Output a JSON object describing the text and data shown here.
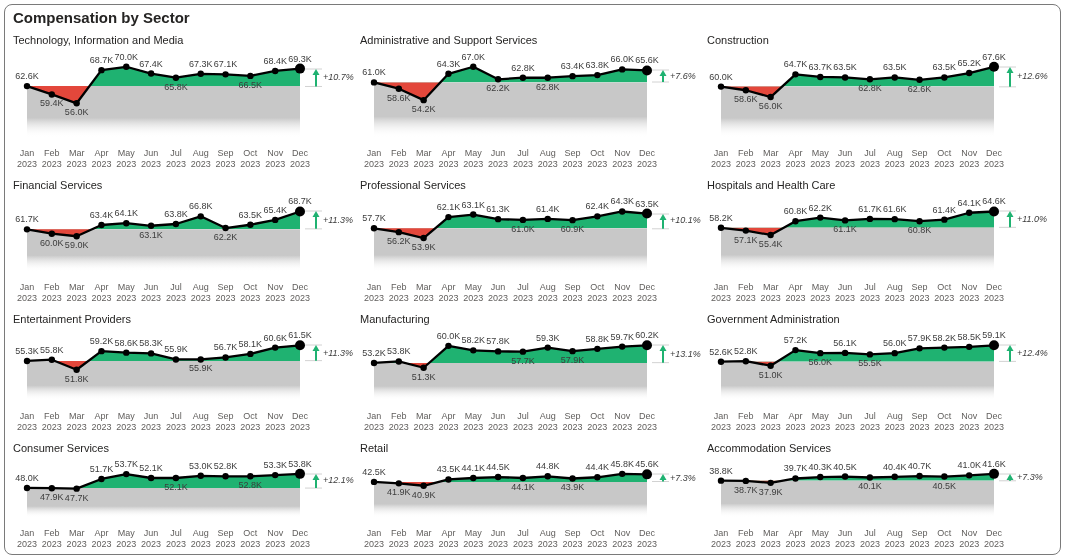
{
  "chart_data": [
    {
      "type": "line",
      "title": "Compensation by Sector",
      "subtitle": "Technology, Information and Media",
      "categories": [
        "Jan 2023",
        "Feb 2023",
        "Mar 2023",
        "Apr 2023",
        "May 2023",
        "Jun 2023",
        "Jul 2023",
        "Aug 2023",
        "Sep 2023",
        "Oct 2023",
        "Nov 2023",
        "Dec 2023"
      ],
      "tick_labels": "x",
      "colors": [
        "#1fb271",
        "#e3473b"
      ],
      "series": [
        {
          "type": "area",
          "color": "#c8c8c8",
          "values": [
            62.6,
            null,
            null,
            62.6,
            62.6,
            62.6,
            62.6,
            62.6,
            62.6,
            62.6,
            62.6,
            62.6
          ]
        },
        {
          "color": "#000000",
          "marker": "circle",
          "values": [
            62.6,
            59.4,
            56.0,
            68.7,
            70.0,
            67.4,
            65.8,
            67.3,
            67.1,
            66.5,
            68.4,
            69.3
          ],
          "value_labels": [
            "62.6K",
            "59.4K",
            "56.0K",
            "68.7K",
            "70.0K",
            "67.4K",
            "65.8K",
            "67.3K",
            "67.1K",
            "66.5K",
            "68.4K",
            "69.3K"
          ]
        }
      ],
      "annotations": [
        "+10.7%"
      ]
    },
    {
      "type": "line",
      "title": "Administrative and Support Services",
      "categories": [
        "Jan 2023",
        "Feb 2023",
        "Mar 2023",
        "Apr 2023",
        "May 2023",
        "Jun 2023",
        "Jul 2023",
        "Aug 2023",
        "Sep 2023",
        "Oct 2023",
        "Nov 2023",
        "Dec 2023"
      ],
      "tick_labels": "x",
      "colors": [
        "#1fb271",
        "#e3473b"
      ],
      "series": [
        {
          "type": "area",
          "color": "#c8c8c8",
          "values": [
            61.0,
            null,
            null,
            61.0,
            61.0,
            61.0,
            61.0,
            61.0,
            61.0,
            61.0,
            61.0,
            61.0
          ]
        },
        {
          "color": "#000000",
          "marker": "circle",
          "values": [
            61.0,
            58.6,
            54.2,
            64.3,
            67.0,
            62.2,
            62.8,
            62.8,
            63.4,
            63.8,
            66.0,
            65.6
          ],
          "value_labels": [
            "61.0K",
            "58.6K",
            "54.2K",
            "64.3K",
            "67.0K",
            "62.2K",
            "62.8K",
            "62.8K",
            "63.4K",
            "63.8K",
            "66.0K",
            "65.6K"
          ]
        }
      ],
      "annotations": [
        "+7.6%"
      ]
    },
    {
      "type": "line",
      "title": "Construction",
      "categories": [
        "Jan 2023",
        "Feb 2023",
        "Mar 2023",
        "Apr 2023",
        "May 2023",
        "Jun 2023",
        "Jul 2023",
        "Aug 2023",
        "Sep 2023",
        "Oct 2023",
        "Nov 2023",
        "Dec 2023"
      ],
      "tick_labels": "x",
      "colors": [
        "#1fb271",
        "#e3473b"
      ],
      "series": [
        {
          "type": "area",
          "color": "#c8c8c8",
          "values": [
            60.0,
            null,
            null,
            60.0,
            60.0,
            60.0,
            60.0,
            60.0,
            60.0,
            60.0,
            60.0,
            60.0
          ]
        },
        {
          "color": "#000000",
          "marker": "circle",
          "values": [
            60.0,
            58.6,
            56.0,
            64.7,
            63.7,
            63.5,
            62.8,
            63.5,
            62.6,
            63.5,
            65.2,
            67.6
          ],
          "value_labels": [
            "60.0K",
            "58.6K",
            "56.0K",
            "64.7K",
            "63.7K",
            "63.5K",
            "62.8K",
            "63.5K",
            "62.6K",
            "63.5K",
            "65.2K",
            "67.6K"
          ]
        }
      ],
      "annotations": [
        "+12.6%"
      ]
    },
    {
      "type": "line",
      "title": "Financial Services",
      "categories": [
        "Jan 2023",
        "Feb 2023",
        "Mar 2023",
        "Apr 2023",
        "May 2023",
        "Jun 2023",
        "Jul 2023",
        "Aug 2023",
        "Sep 2023",
        "Oct 2023",
        "Nov 2023",
        "Dec 2023"
      ],
      "tick_labels": "x",
      "colors": [
        "#1fb271",
        "#e3473b"
      ],
      "series": [
        {
          "type": "area",
          "color": "#c8c8c8",
          "values": [
            61.7,
            null,
            null,
            61.7,
            61.7,
            61.7,
            61.7,
            61.7,
            null,
            61.7,
            61.7,
            61.7
          ]
        },
        {
          "color": "#000000",
          "marker": "circle",
          "values": [
            61.7,
            60.0,
            59.0,
            63.4,
            64.1,
            63.1,
            63.8,
            66.8,
            62.2,
            63.5,
            65.4,
            68.7
          ],
          "value_labels": [
            "61.7K",
            "60.0K",
            "59.0K",
            "63.4K",
            "64.1K",
            "63.1K",
            "63.8K",
            "66.8K",
            "62.2K",
            "63.5K",
            "65.4K",
            "68.7K"
          ]
        }
      ],
      "annotations": [
        "+11.3%"
      ]
    },
    {
      "type": "line",
      "title": "Professional Services",
      "categories": [
        "Jan 2023",
        "Feb 2023",
        "Mar 2023",
        "Apr 2023",
        "May 2023",
        "Jun 2023",
        "Jul 2023",
        "Aug 2023",
        "Sep 2023",
        "Oct 2023",
        "Nov 2023",
        "Dec 2023"
      ],
      "tick_labels": "x",
      "colors": [
        "#1fb271",
        "#e3473b"
      ],
      "series": [
        {
          "type": "area",
          "color": "#c8c8c8",
          "values": [
            57.7,
            null,
            null,
            57.7,
            57.7,
            57.7,
            57.7,
            57.7,
            57.7,
            57.7,
            57.7,
            57.7
          ]
        },
        {
          "color": "#000000",
          "marker": "circle",
          "values": [
            57.7,
            56.2,
            53.9,
            62.1,
            63.1,
            61.3,
            61.0,
            61.4,
            60.9,
            62.4,
            64.3,
            63.5
          ],
          "value_labels": [
            "57.7K",
            "56.2K",
            "53.9K",
            "62.1K",
            "63.1K",
            "61.3K",
            "61.0K",
            "61.4K",
            "60.9K",
            "62.4K",
            "64.3K",
            "63.5K"
          ]
        }
      ],
      "annotations": [
        "+10.1%"
      ]
    },
    {
      "type": "line",
      "title": "Hospitals and Health Care",
      "categories": [
        "Jan 2023",
        "Feb 2023",
        "Mar 2023",
        "Apr 2023",
        "May 2023",
        "Jun 2023",
        "Jul 2023",
        "Aug 2023",
        "Sep 2023",
        "Oct 2023",
        "Nov 2023",
        "Dec 2023"
      ],
      "tick_labels": "x",
      "colors": [
        "#1fb271",
        "#e3473b"
      ],
      "series": [
        {
          "type": "area",
          "color": "#c8c8c8",
          "values": [
            58.2,
            null,
            null,
            58.2,
            58.2,
            58.2,
            58.2,
            58.2,
            58.2,
            58.2,
            58.2,
            58.2
          ]
        },
        {
          "color": "#000000",
          "marker": "circle",
          "values": [
            58.2,
            57.1,
            55.4,
            60.8,
            62.2,
            61.1,
            61.7,
            61.6,
            60.8,
            61.4,
            64.1,
            64.6
          ],
          "value_labels": [
            "58.2K",
            "57.1K",
            "55.4K",
            "60.8K",
            "62.2K",
            "61.1K",
            "61.7K",
            "61.6K",
            "60.8K",
            "61.4K",
            "64.1K",
            "64.6K"
          ]
        }
      ],
      "annotations": [
        "+11.0%"
      ]
    },
    {
      "type": "line",
      "title": "Entertainment Providers",
      "categories": [
        "Jan 2023",
        "Feb 2023",
        "Mar 2023",
        "Apr 2023",
        "May 2023",
        "Jun 2023",
        "Jul 2023",
        "Aug 2023",
        "Sep 2023",
        "Oct 2023",
        "Nov 2023",
        "Dec 2023"
      ],
      "tick_labels": "x",
      "colors": [
        "#1fb271",
        "#e3473b"
      ],
      "series": [
        {
          "type": "area",
          "color": "#c8c8c8",
          "values": [
            55.3,
            null,
            null,
            55.3,
            55.3,
            55.3,
            null,
            null,
            55.3,
            55.3,
            55.3,
            55.3
          ]
        },
        {
          "color": "#000000",
          "marker": "circle",
          "values": [
            55.3,
            55.8,
            51.8,
            59.2,
            58.6,
            58.3,
            55.9,
            55.9,
            56.7,
            58.1,
            60.6,
            61.5
          ],
          "value_labels": [
            "55.3K",
            "55.8K",
            "51.8K",
            "59.2K",
            "58.6K",
            "58.3K",
            "55.9K",
            "55.9K",
            "56.7K",
            "58.1K",
            "60.6K",
            "61.5K"
          ]
        }
      ],
      "annotations": [
        "+11.3%"
      ]
    },
    {
      "type": "line",
      "title": "Manufacturing",
      "categories": [
        "Jan 2023",
        "Feb 2023",
        "Mar 2023",
        "Apr 2023",
        "May 2023",
        "Jun 2023",
        "Jul 2023",
        "Aug 2023",
        "Sep 2023",
        "Oct 2023",
        "Nov 2023",
        "Dec 2023"
      ],
      "tick_labels": "x",
      "colors": [
        "#1fb271",
        "#e3473b"
      ],
      "series": [
        {
          "type": "area",
          "color": "#c8c8c8",
          "values": [
            53.2,
            null,
            null,
            53.2,
            53.2,
            53.2,
            53.2,
            53.2,
            53.2,
            53.2,
            53.2,
            53.2
          ]
        },
        {
          "color": "#000000",
          "marker": "circle",
          "values": [
            53.2,
            53.8,
            51.3,
            60.0,
            58.2,
            57.8,
            57.7,
            59.3,
            57.9,
            58.8,
            59.7,
            60.2
          ],
          "value_labels": [
            "53.2K",
            "53.8K",
            "51.3K",
            "60.0K",
            "58.2K",
            "57.8K",
            "57.7K",
            "59.3K",
            "57.9K",
            "58.8K",
            "59.7K",
            "60.2K"
          ]
        }
      ],
      "annotations": [
        "+13.1%"
      ]
    },
    {
      "type": "line",
      "title": "Government Administration",
      "categories": [
        "Jan 2023",
        "Feb 2023",
        "Mar 2023",
        "Apr 2023",
        "May 2023",
        "Jun 2023",
        "Jul 2023",
        "Aug 2023",
        "Sep 2023",
        "Oct 2023",
        "Nov 2023",
        "Dec 2023"
      ],
      "tick_labels": "x",
      "colors": [
        "#1fb271",
        "#e3473b"
      ],
      "series": [
        {
          "type": "area",
          "color": "#c8c8c8",
          "values": [
            52.6,
            null,
            null,
            52.6,
            52.6,
            52.6,
            52.6,
            52.6,
            52.6,
            52.6,
            52.6,
            52.6
          ]
        },
        {
          "color": "#000000",
          "marker": "circle",
          "values": [
            52.6,
            52.8,
            51.0,
            57.2,
            56.0,
            56.1,
            55.5,
            56.0,
            57.9,
            58.2,
            58.5,
            59.1
          ],
          "value_labels": [
            "52.6K",
            "52.8K",
            "51.0K",
            "57.2K",
            "56.0K",
            "56.1K",
            "55.5K",
            "56.0K",
            "57.9K",
            "58.2K",
            "58.5K",
            "59.1K"
          ]
        }
      ],
      "annotations": [
        "+12.4%"
      ]
    },
    {
      "type": "line",
      "title": "Consumer Services",
      "categories": [
        "Jan 2023",
        "Feb 2023",
        "Mar 2023",
        "Apr 2023",
        "May 2023",
        "Jun 2023",
        "Jul 2023",
        "Aug 2023",
        "Sep 2023",
        "Oct 2023",
        "Nov 2023",
        "Dec 2023"
      ],
      "tick_labels": "x",
      "colors": [
        "#1fb271",
        "#e3473b"
      ],
      "series": [
        {
          "type": "area",
          "color": "#c8c8c8",
          "values": [
            48.0,
            null,
            null,
            48.0,
            48.0,
            48.0,
            48.0,
            48.0,
            48.0,
            48.0,
            48.0,
            48.0
          ]
        },
        {
          "color": "#000000",
          "marker": "circle",
          "values": [
            48.0,
            47.9,
            47.7,
            51.7,
            53.7,
            52.1,
            52.1,
            53.0,
            52.8,
            52.8,
            53.3,
            53.8
          ],
          "value_labels": [
            "48.0K",
            "47.9K",
            "47.7K",
            "51.7K",
            "53.7K",
            "52.1K",
            "52.1K",
            "53.0K",
            "52.8K",
            "52.8K",
            "53.3K",
            "53.8K"
          ]
        }
      ],
      "annotations": [
        "+12.1%"
      ]
    },
    {
      "type": "line",
      "title": "Retail",
      "categories": [
        "Jan 2023",
        "Feb 2023",
        "Mar 2023",
        "Apr 2023",
        "May 2023",
        "Jun 2023",
        "Jul 2023",
        "Aug 2023",
        "Sep 2023",
        "Oct 2023",
        "Nov 2023",
        "Dec 2023"
      ],
      "tick_labels": "x",
      "colors": [
        "#1fb271",
        "#e3473b"
      ],
      "series": [
        {
          "type": "area",
          "color": "#c8c8c8",
          "values": [
            42.5,
            null,
            null,
            null,
            42.5,
            42.5,
            42.5,
            42.5,
            42.5,
            42.5,
            42.5,
            42.5
          ]
        },
        {
          "color": "#000000",
          "marker": "circle",
          "values": [
            42.5,
            41.9,
            40.9,
            43.5,
            44.1,
            44.5,
            44.1,
            44.8,
            43.9,
            44.4,
            45.8,
            45.6
          ],
          "value_labels": [
            "42.5K",
            "41.9K",
            "40.9K",
            "43.5K",
            "44.1K",
            "44.5K",
            "44.1K",
            "44.8K",
            "43.9K",
            "44.4K",
            "45.8K",
            "45.6K"
          ]
        }
      ],
      "annotations": [
        "+7.3%"
      ]
    },
    {
      "type": "line",
      "title": "Accommodation Services",
      "categories": [
        "Jan 2023",
        "Feb 2023",
        "Mar 2023",
        "Apr 2023",
        "May 2023",
        "Jun 2023",
        "Jul 2023",
        "Aug 2023",
        "Sep 2023",
        "Oct 2023",
        "Nov 2023",
        "Dec 2023"
      ],
      "tick_labels": "x",
      "colors": [
        "#1fb271",
        "#e3473b"
      ],
      "series": [
        {
          "type": "area",
          "color": "#c8c8c8",
          "values": [
            38.8,
            null,
            null,
            null,
            38.8,
            38.8,
            38.8,
            38.8,
            38.8,
            38.8,
            38.8,
            38.8
          ]
        },
        {
          "color": "#000000",
          "marker": "circle",
          "values": [
            38.8,
            38.7,
            37.9,
            39.7,
            40.3,
            40.5,
            40.1,
            40.4,
            40.7,
            40.5,
            41.0,
            41.6
          ],
          "value_labels": [
            "38.8K",
            "38.7K",
            "37.9K",
            "39.7K",
            "40.3K",
            "40.5K",
            "40.1K",
            "40.4K",
            "40.7K",
            "40.5K",
            "41.0K",
            "41.6K"
          ]
        }
      ],
      "annotations": [
        "+7.3%"
      ]
    }
  ]
}
